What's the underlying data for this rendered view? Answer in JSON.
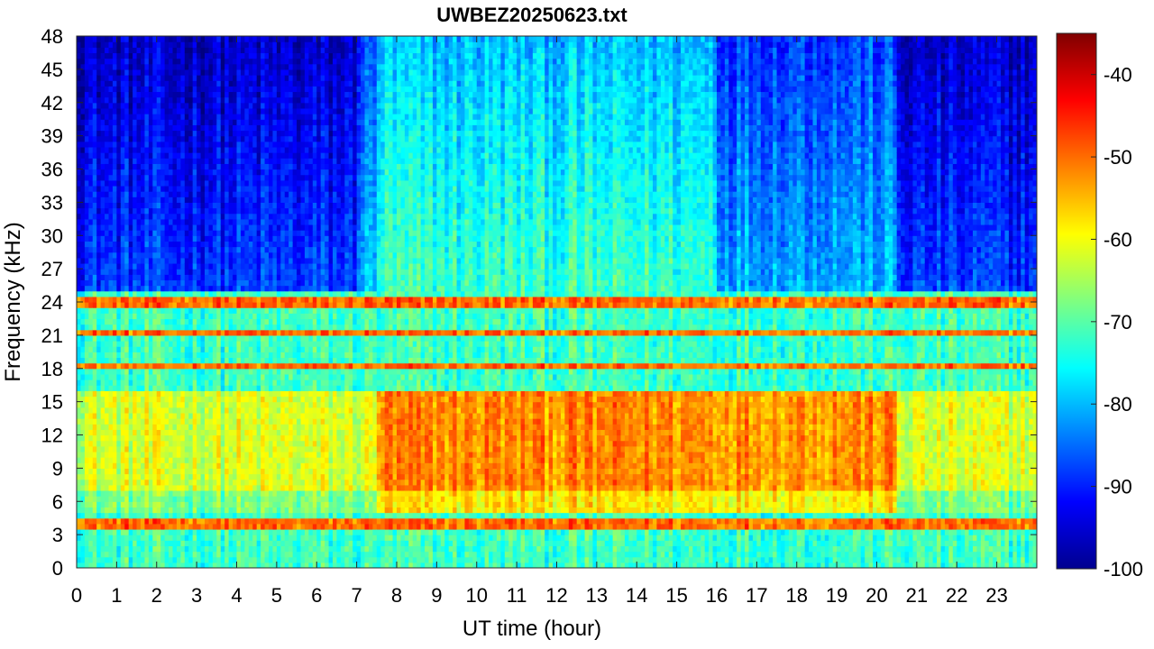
{
  "chart_data": {
    "type": "heatmap",
    "title": "UWBEZ20250623.txt",
    "xlabel": "UT time (hour)",
    "ylabel": "Frequency (kHz)",
    "xlim": [
      0,
      24
    ],
    "ylim": [
      0,
      48
    ],
    "x_ticks": [
      "0",
      "1",
      "2",
      "3",
      "4",
      "5",
      "6",
      "7",
      "8",
      "9",
      "10",
      "11",
      "12",
      "13",
      "14",
      "15",
      "16",
      "17",
      "18",
      "19",
      "20",
      "21",
      "22",
      "23"
    ],
    "y_ticks": [
      "0",
      "3",
      "6",
      "9",
      "12",
      "15",
      "18",
      "21",
      "24",
      "27",
      "30",
      "33",
      "36",
      "39",
      "42",
      "45",
      "48"
    ],
    "colorbar": {
      "colormap": "jet",
      "clim": [
        -100,
        -35
      ],
      "ticks": [
        "-100",
        "-90",
        "-80",
        "-70",
        "-60",
        "-50",
        "-40"
      ]
    },
    "features": {
      "bright_band_khz": [
        5,
        16
      ],
      "bright_band_hours": [
        7.5,
        20.5
      ],
      "narrowband_lines_khz": [
        4.0,
        18.2,
        21.4,
        24.0
      ],
      "noise_floor_above_khz": 25
    }
  }
}
